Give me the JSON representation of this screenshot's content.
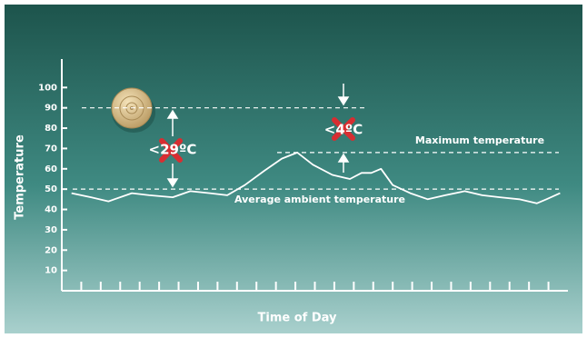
{
  "chart_data": {
    "type": "line",
    "y_label": "Temperature",
    "x_label": "Time of Day",
    "xlim": [
      0,
      26
    ],
    "xticks": [
      1,
      2,
      3,
      4,
      5,
      6,
      7,
      8,
      9,
      10,
      11,
      12,
      13,
      14,
      15,
      16,
      17,
      18,
      19,
      20,
      21,
      22,
      23,
      24,
      25
    ],
    "ylim": [
      0,
      114
    ],
    "yticks": [
      10,
      20,
      30,
      40,
      50,
      60,
      70,
      80,
      90,
      100
    ],
    "color": "#ffffff",
    "x": [
      0.5,
      1.5,
      2.4,
      3.6,
      4.5,
      5.7,
      6.6,
      7.6,
      8.5,
      9.4,
      10.4,
      11.3,
      12.1,
      12.9,
      13.9,
      14.8,
      15.4,
      15.9,
      16.4,
      17.0,
      17.9,
      18.8,
      19.7,
      20.7,
      21.6,
      22.5,
      23.5,
      24.4,
      24.9,
      25.6
    ],
    "values": [
      48,
      46,
      44,
      48,
      47,
      46,
      49,
      48,
      47,
      52,
      59,
      65,
      68,
      62,
      57,
      55,
      58,
      58,
      60,
      52,
      48,
      45,
      47,
      49,
      47,
      46,
      45,
      43,
      45,
      48
    ],
    "reference_lines": [
      {
        "value": 90
      },
      {
        "value": 68,
        "label": "Maximum temperature"
      },
      {
        "value": 50,
        "label": "Average ambient temperature"
      }
    ],
    "annotations": [
      "<29ºC",
      "<4ºC"
    ]
  }
}
